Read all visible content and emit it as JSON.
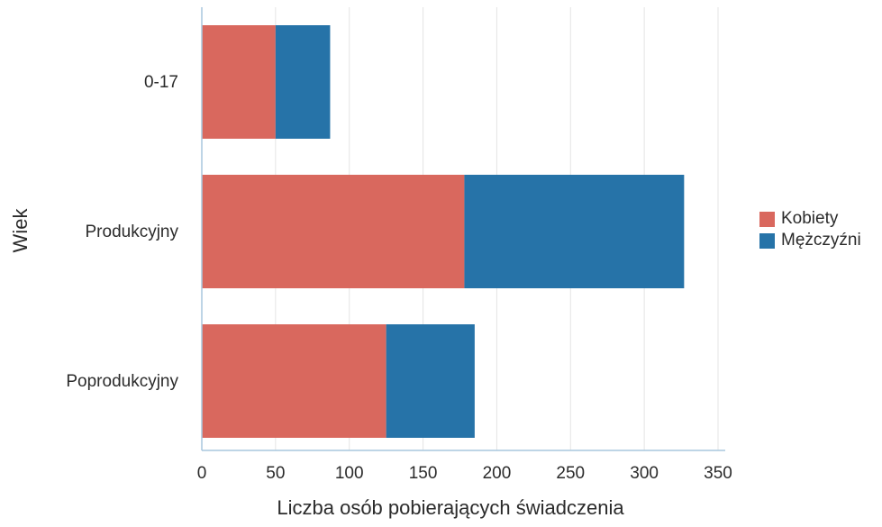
{
  "chart_data": {
    "type": "bar",
    "orientation": "horizontal",
    "stacked": true,
    "categories": [
      "0-17",
      "Produkcyjny",
      "Poprodukcyjny"
    ],
    "series": [
      {
        "name": "Kobiety",
        "values": [
          50,
          178,
          125
        ],
        "color": "#d9685e"
      },
      {
        "name": "Mężczyźni",
        "values": [
          37,
          149,
          60
        ],
        "color": "#2673a8"
      }
    ],
    "xlabel": "Liczba osób pobierających świadczenia",
    "ylabel": "Wiek",
    "xlim": [
      0,
      350
    ],
    "xticks": [
      "0",
      "50",
      "100",
      "150",
      "200",
      "250",
      "300",
      "350"
    ],
    "grid": "vertical",
    "legend_position": "right"
  }
}
